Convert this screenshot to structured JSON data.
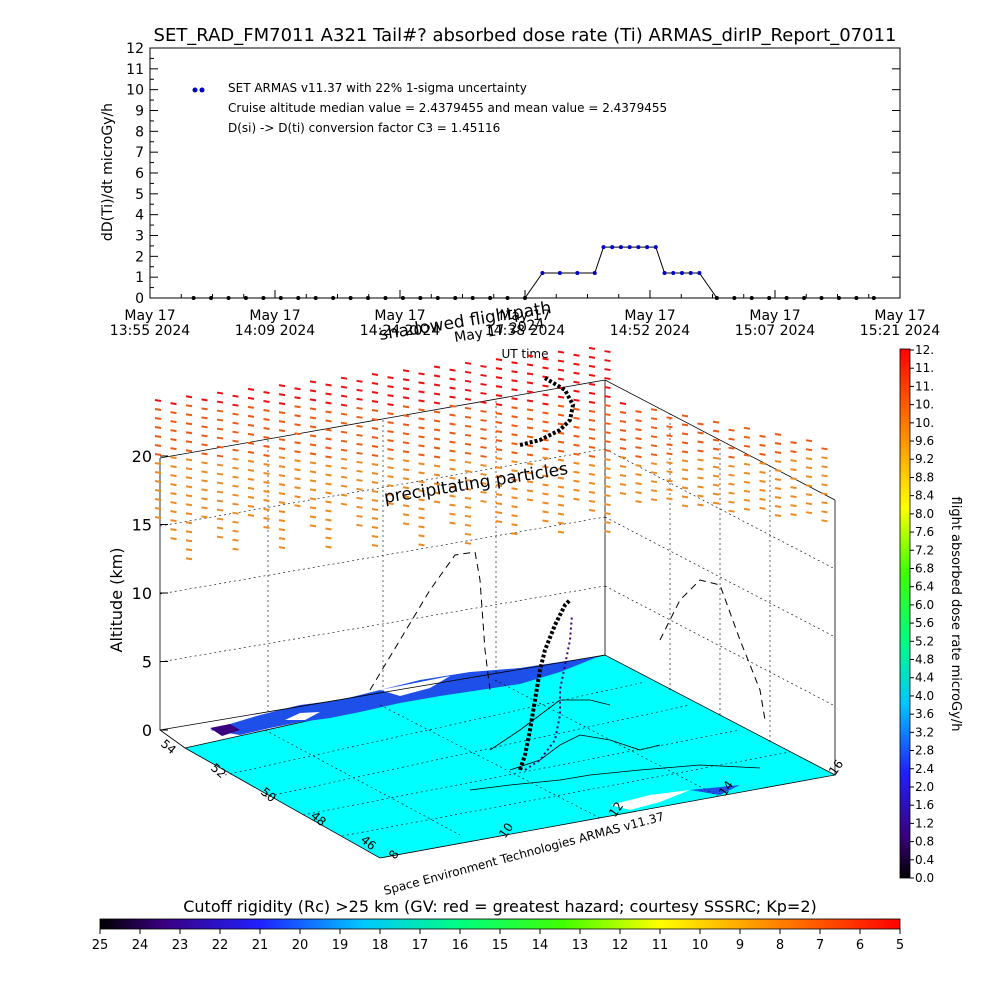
{
  "title": "SET_RAD_FM7011  A321 Tail#? absorbed dose rate (Ti) ARMAS_dirIP_Report_07011",
  "top_chart": {
    "ylabel": "dD(Ti)/dt microGy/h",
    "xlabel": "UT time",
    "legend": [
      "SET ARMAS v11.37 with 22% 1-sigma uncertainty",
      "Cruise altitude median value = 2.4379455 and mean value = 2.4379455",
      "D(si) -> D(ti) conversion factor C3 = 1.45116"
    ]
  },
  "chart_data": [
    {
      "type": "line",
      "title": "SET_RAD_FM7011  A321 Tail#? absorbed dose rate (Ti) ARMAS_dirIP_Report_07011",
      "xlabel": "UT time",
      "ylabel": "dD(Ti)/dt microGy/h",
      "ylim": [
        0,
        12
      ],
      "yticks": [
        "0",
        "1",
        "2",
        "3",
        "4",
        "5",
        "6",
        "7",
        "8",
        "9",
        "10",
        "11",
        "12"
      ],
      "xlim": [
        "13:55",
        "15:21"
      ],
      "xticks": [
        {
          "date": "May 17",
          "time": "13:55 2024"
        },
        {
          "date": "May 17",
          "time": "14:09 2024"
        },
        {
          "date": "May 17",
          "time": "14:24 2024"
        },
        {
          "date": "May 17",
          "time": "14:38 2024"
        },
        {
          "date": "May 17",
          "time": "14:52 2024"
        },
        {
          "date": "May 17",
          "time": "15:07 2024"
        },
        {
          "date": "May 17",
          "time": "15:21 2024"
        }
      ],
      "series": [
        {
          "name": "SET ARMAS v11.37 with 22% 1-sigma uncertainty",
          "color": "#0000cc",
          "points": [
            [
              "14:00",
              0
            ],
            [
              "14:02",
              0
            ],
            [
              "14:04",
              0
            ],
            [
              "14:06",
              0
            ],
            [
              "14:08",
              0
            ],
            [
              "14:10",
              0
            ],
            [
              "14:12",
              0
            ],
            [
              "14:14",
              0
            ],
            [
              "14:16",
              0
            ],
            [
              "14:18",
              0
            ],
            [
              "14:20",
              0
            ],
            [
              "14:22",
              0
            ],
            [
              "14:24",
              0
            ],
            [
              "14:26",
              0
            ],
            [
              "14:28",
              0
            ],
            [
              "14:30",
              0
            ],
            [
              "14:32",
              0
            ],
            [
              "14:34",
              0
            ],
            [
              "14:36",
              0
            ],
            [
              "14:38",
              0
            ],
            [
              "14:40",
              1.2
            ],
            [
              "14:42",
              1.2
            ],
            [
              "14:44",
              1.2
            ],
            [
              "14:46",
              1.2
            ],
            [
              "14:47",
              2.44
            ],
            [
              "14:48",
              2.44
            ],
            [
              "14:49",
              2.44
            ],
            [
              "14:50",
              2.44
            ],
            [
              "14:51",
              2.44
            ],
            [
              "14:52",
              2.44
            ],
            [
              "14:53",
              2.44
            ],
            [
              "14:54",
              1.2
            ],
            [
              "14:55",
              1.2
            ],
            [
              "14:56",
              1.2
            ],
            [
              "14:57",
              1.2
            ],
            [
              "14:58",
              1.2
            ],
            [
              "15:00",
              0
            ],
            [
              "15:02",
              0
            ],
            [
              "15:04",
              0
            ],
            [
              "15:06",
              0
            ],
            [
              "15:08",
              0
            ],
            [
              "15:10",
              0
            ],
            [
              "15:12",
              0
            ],
            [
              "15:14",
              0
            ],
            [
              "15:16",
              0
            ],
            [
              "15:18",
              0
            ]
          ]
        }
      ]
    },
    {
      "type": "scatter",
      "title": "",
      "zlabel": "Altitude (km)",
      "zlim": [
        0,
        20
      ],
      "zticks": [
        "0",
        "5",
        "10",
        "15",
        "20"
      ],
      "latitude_ticks": [
        "54",
        "52",
        "50",
        "48",
        "46"
      ],
      "longitude_ticks": [
        "8",
        "10",
        "12",
        "14",
        "16"
      ],
      "annotations": [
        "shadowed flightpath",
        "precipitating particles",
        "May 17 2024"
      ]
    }
  ],
  "colorbar_right": {
    "label": "flight absorbed dose rate microGy/h",
    "ticks": [
      "0.0",
      "0.4",
      "0.8",
      "1.2",
      "1.6",
      "2.0",
      "2.4",
      "2.8",
      "3.2",
      "3.6",
      "4.0",
      "4.4",
      "4.8",
      "5.2",
      "5.6",
      "6.0",
      "6.4",
      "6.8",
      "7.2",
      "7.6",
      "8.0",
      "8.4",
      "8.8",
      "9.2",
      "9.6",
      "10.",
      "10.",
      "11.",
      "11.",
      "12."
    ]
  },
  "colorbar_bottom": {
    "title": "Cutoff rigidity (Rc) >25 km (GV: red = greatest hazard; courtesy SSSRC; Kp=2)",
    "ticks": [
      "25",
      "24",
      "23",
      "22",
      "21",
      "20",
      "19",
      "18",
      "17",
      "16",
      "15",
      "14",
      "13",
      "12",
      "11",
      "10",
      "9",
      "8",
      "7",
      "6",
      "5"
    ]
  },
  "credit": "Space Environment Technologies ARMAS v11.37",
  "colors": {
    "dose_line": "#000000",
    "dose_dot": "#0000cc",
    "map_sea": "#00ffff",
    "map_land": "#1e4fe8"
  }
}
